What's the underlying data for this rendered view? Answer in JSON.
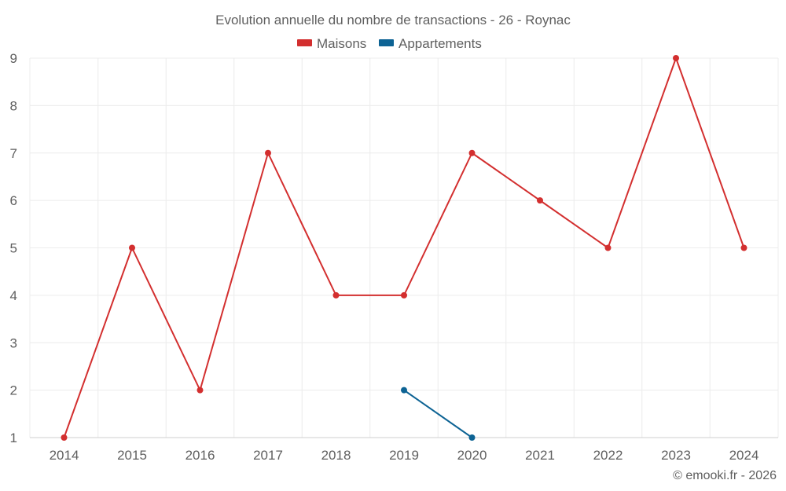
{
  "chart_data": {
    "type": "line",
    "title": "Evolution annuelle du nombre de transactions - 26 - Roynac",
    "categories": [
      "2014",
      "2015",
      "2016",
      "2017",
      "2018",
      "2019",
      "2020",
      "2021",
      "2022",
      "2023",
      "2024"
    ],
    "series": [
      {
        "name": "Maisons",
        "color": "#d32f2f",
        "values": [
          1,
          5,
          2,
          7,
          4,
          4,
          7,
          6,
          5,
          9,
          5
        ]
      },
      {
        "name": "Appartements",
        "color": "#0d6394",
        "values": [
          null,
          null,
          null,
          null,
          null,
          2,
          1,
          null,
          null,
          null,
          null
        ]
      }
    ],
    "yticks": [
      "1",
      "2",
      "3",
      "4",
      "5",
      "6",
      "7",
      "8",
      "9"
    ],
    "ylim": [
      1,
      9
    ],
    "xlabel": "",
    "ylabel": "",
    "grid": true,
    "legend_position": "top-center"
  },
  "colors": {
    "text": "#5f5f5f",
    "grid": "#ececec",
    "axis": "#cfcfcf"
  },
  "credit": "© emooki.fr - 2026"
}
